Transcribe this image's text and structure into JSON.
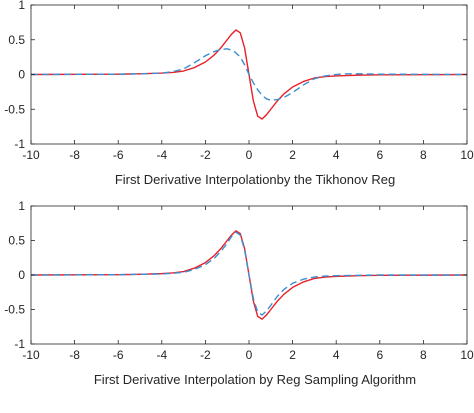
{
  "chart_data": [
    {
      "type": "line",
      "title": "",
      "xlabel": "First Derivative Interpolationby the Tikhonov Reg",
      "ylabel": "",
      "xlim": [
        -10,
        10
      ],
      "ylim": [
        -1,
        1
      ],
      "xticks": [
        -10,
        -8,
        -6,
        -4,
        -2,
        0,
        2,
        4,
        6,
        8,
        10
      ],
      "yticks": [
        -1,
        -0.5,
        0,
        0.5,
        1
      ],
      "grid": false,
      "series": [
        {
          "color": "#e8202a",
          "dash": "solid",
          "x": [
            -10,
            -6,
            -5,
            -4,
            -3.5,
            -3,
            -2.5,
            -2,
            -1.6,
            -1.3,
            -1,
            -0.8,
            -0.6,
            -0.4,
            -0.2,
            0,
            0.2,
            0.4,
            0.6,
            0.8,
            1,
            1.3,
            1.6,
            2,
            2.5,
            3,
            3.5,
            4,
            5,
            6,
            10
          ],
          "values": [
            0,
            0.005,
            0.01,
            0.02,
            0.03,
            0.05,
            0.1,
            0.18,
            0.28,
            0.38,
            0.5,
            0.58,
            0.64,
            0.6,
            0.38,
            0,
            -0.38,
            -0.6,
            -0.64,
            -0.58,
            -0.5,
            -0.38,
            -0.28,
            -0.18,
            -0.1,
            -0.05,
            -0.03,
            -0.02,
            -0.01,
            -0.005,
            0
          ]
        },
        {
          "color": "#3b8fd1",
          "dash": "dashed",
          "x": [
            -10,
            -6,
            -5,
            -4,
            -3.5,
            -3,
            -2.5,
            -2,
            -1.6,
            -1.3,
            -1,
            -0.7,
            -0.4,
            -0.2,
            0,
            0.2,
            0.4,
            0.6,
            0.8,
            1,
            1.3,
            1.6,
            2,
            2.5,
            3,
            3.5,
            4,
            4.5,
            5,
            6,
            10
          ],
          "values": [
            0,
            0.005,
            0.01,
            0.02,
            0.04,
            0.08,
            0.17,
            0.27,
            0.33,
            0.36,
            0.37,
            0.34,
            0.25,
            0.14,
            0,
            -0.12,
            -0.22,
            -0.3,
            -0.35,
            -0.37,
            -0.36,
            -0.33,
            -0.26,
            -0.15,
            -0.06,
            -0.02,
            0,
            0.01,
            0.01,
            0.005,
            0
          ]
        }
      ]
    },
    {
      "type": "line",
      "title": "",
      "xlabel": "First Derivative Interpolation by Reg Sampling Algorithm",
      "ylabel": "",
      "xlim": [
        -10,
        10
      ],
      "ylim": [
        -1,
        1
      ],
      "xticks": [
        -10,
        -8,
        -6,
        -4,
        -2,
        0,
        2,
        4,
        6,
        8,
        10
      ],
      "yticks": [
        -1,
        -0.5,
        0,
        0.5,
        1
      ],
      "grid": false,
      "series": [
        {
          "color": "#e8202a",
          "dash": "solid",
          "x": [
            -10,
            -6,
            -5,
            -4,
            -3.5,
            -3,
            -2.5,
            -2,
            -1.6,
            -1.3,
            -1,
            -0.8,
            -0.6,
            -0.4,
            -0.2,
            0,
            0.2,
            0.4,
            0.6,
            0.8,
            1,
            1.3,
            1.6,
            2,
            2.5,
            3,
            3.5,
            4,
            5,
            6,
            10
          ],
          "values": [
            0,
            0.005,
            0.01,
            0.02,
            0.03,
            0.05,
            0.1,
            0.18,
            0.28,
            0.38,
            0.5,
            0.58,
            0.64,
            0.6,
            0.38,
            0,
            -0.38,
            -0.6,
            -0.64,
            -0.58,
            -0.5,
            -0.38,
            -0.28,
            -0.18,
            -0.1,
            -0.05,
            -0.03,
            -0.02,
            -0.01,
            -0.005,
            0
          ]
        },
        {
          "color": "#3b8fd1",
          "dash": "dashed",
          "x": [
            -10,
            -6,
            -5,
            -4,
            -3.5,
            -3,
            -2.5,
            -2,
            -1.6,
            -1.3,
            -1,
            -0.8,
            -0.6,
            -0.4,
            -0.2,
            0,
            0.2,
            0.4,
            0.6,
            0.8,
            1,
            1.3,
            1.6,
            2,
            2.5,
            3,
            3.5,
            4,
            5,
            6,
            10
          ],
          "values": [
            0,
            0.005,
            0.01,
            0.015,
            0.025,
            0.04,
            0.08,
            0.15,
            0.24,
            0.34,
            0.46,
            0.56,
            0.62,
            0.58,
            0.36,
            0,
            -0.34,
            -0.54,
            -0.58,
            -0.52,
            -0.44,
            -0.31,
            -0.21,
            -0.12,
            -0.06,
            -0.03,
            -0.015,
            -0.01,
            -0.005,
            0,
            0
          ]
        }
      ]
    }
  ]
}
